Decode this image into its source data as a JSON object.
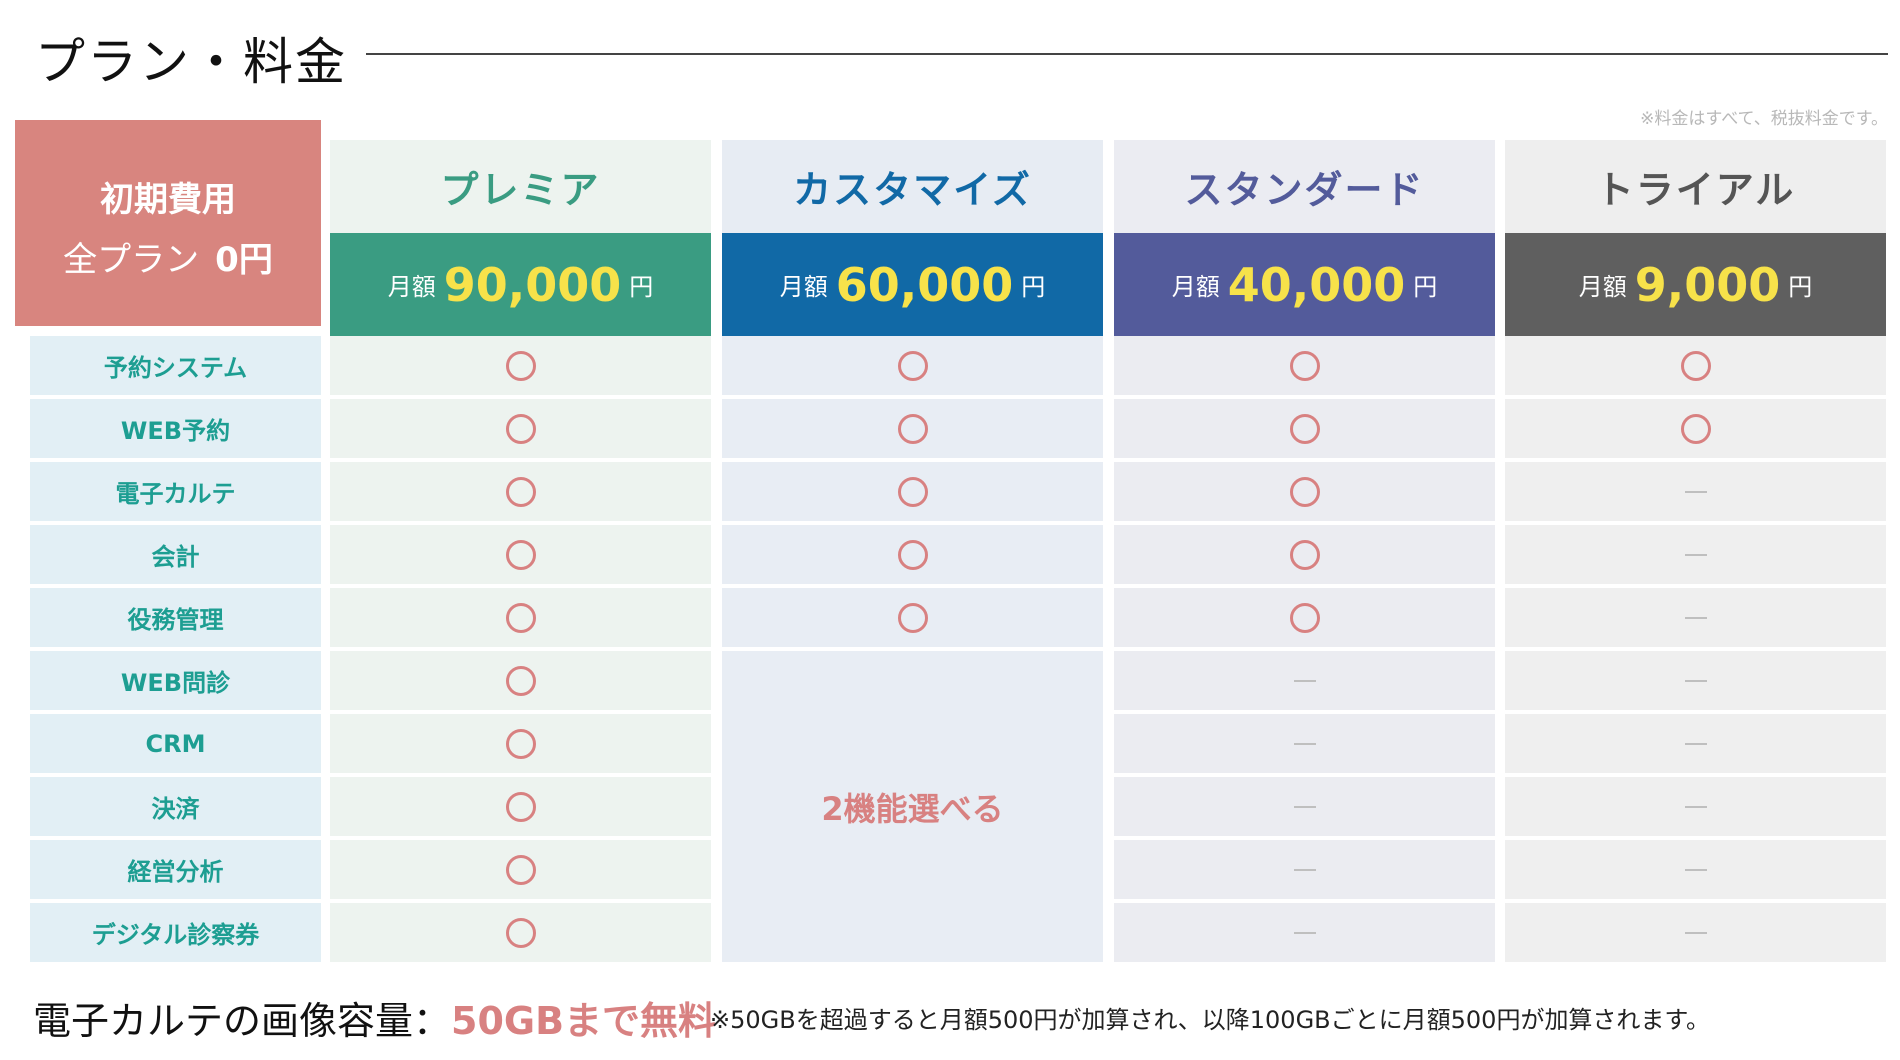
{
  "title": "プラン・料金",
  "tax_note": "※料金はすべて、税抜料金です。",
  "initial_cost": {
    "line1": "初期費用",
    "line2_prefix": "全プラン",
    "line2_value": "0円"
  },
  "features": [
    "予約システム",
    "WEB予約",
    "電子カルテ",
    "会計",
    "役務管理",
    "WEB問診",
    "CRM",
    "決済",
    "経営分析",
    "デジタル診察券"
  ],
  "plans": [
    {
      "name": "プレミア",
      "price_prefix": "月額",
      "price": "90,000",
      "price_suffix": "円",
      "marks": [
        "o",
        "o",
        "o",
        "o",
        "o",
        "o",
        "o",
        "o",
        "o",
        "o"
      ]
    },
    {
      "name": "カスタマイズ",
      "price_prefix": "月額",
      "price": "60,000",
      "price_suffix": "円",
      "marks": [
        "o",
        "o",
        "o",
        "o",
        "o"
      ],
      "merged_note": "2機能選べる"
    },
    {
      "name": "スタンダード",
      "price_prefix": "月額",
      "price": "40,000",
      "price_suffix": "円",
      "marks": [
        "o",
        "o",
        "o",
        "o",
        "o",
        "-",
        "-",
        "-",
        "-",
        "-"
      ]
    },
    {
      "name": "トライアル",
      "price_prefix": "月額",
      "price": "9,000",
      "price_suffix": "円",
      "marks": [
        "o",
        "o",
        "-",
        "-",
        "-",
        "-",
        "-",
        "-",
        "-",
        "-"
      ]
    }
  ],
  "colors": {
    "premia": "#3a9c82",
    "customize": "#1169a6",
    "standard": "#535b9b",
    "trial": "#5f5f5f",
    "accent": "#d88181",
    "price": "#f7e24a",
    "feature_text": "#1d9e92"
  },
  "footer": {
    "label": "電子カルテの画像容量：",
    "highlight": "50GBまで無料",
    "note": "※50GBを超過すると月額500円が加算され、以降100GBごとに月額500円が加算されます。"
  }
}
